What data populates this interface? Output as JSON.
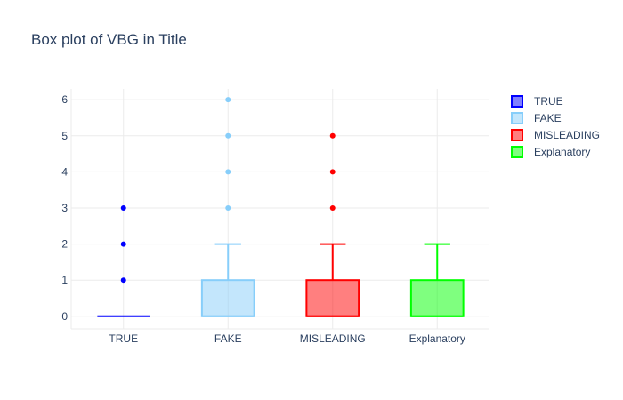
{
  "chart_data": {
    "type": "box",
    "title": "Box plot of VBG in Title",
    "xlabel": "",
    "ylabel": "",
    "ylim": [
      -0.35,
      6.3
    ],
    "yticks": [
      0,
      1,
      2,
      3,
      4,
      5,
      6
    ],
    "grid": true,
    "legend_position": "top-right",
    "categories": [
      "TRUE",
      "FAKE",
      "MISLEADING",
      "Explanatory"
    ],
    "series": [
      {
        "name": "TRUE",
        "color": "#0000ff",
        "fill": "rgba(0,0,255,0.5)",
        "min": 0,
        "q1": 0,
        "median": 0,
        "q3": 0,
        "max": 0,
        "outliers": [
          1,
          2,
          3
        ]
      },
      {
        "name": "FAKE",
        "color": "#87cefa",
        "fill": "rgba(135,206,250,0.5)",
        "min": 0,
        "q1": 0,
        "median": 0,
        "q3": 1,
        "max": 2,
        "outliers": [
          3,
          4,
          5,
          6
        ]
      },
      {
        "name": "MISLEADING",
        "color": "#ff0000",
        "fill": "rgba(255,0,0,0.5)",
        "min": 0,
        "q1": 0,
        "median": 0,
        "q3": 1,
        "max": 2,
        "outliers": [
          3,
          4,
          5
        ]
      },
      {
        "name": "Explanatory",
        "color": "#00ff00",
        "fill": "rgba(0,255,0,0.5)",
        "min": 0,
        "q1": 0,
        "median": 0,
        "q3": 1,
        "max": 2,
        "outliers": []
      }
    ]
  }
}
